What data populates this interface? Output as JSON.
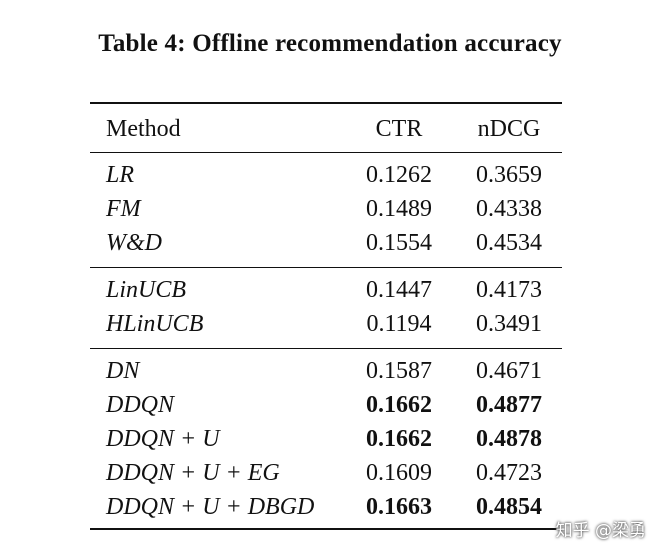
{
  "caption": "Table 4: Offline recommendation accuracy",
  "header": {
    "method": "Method",
    "ctr": "CTR",
    "ndcg": "nDCG"
  },
  "groups": [
    {
      "rows": [
        {
          "method": "LR",
          "ctr": "0.1262",
          "ndcg": "0.3659",
          "bold_ctr": false,
          "bold_ndcg": false
        },
        {
          "method": "FM",
          "ctr": "0.1489",
          "ndcg": "0.4338",
          "bold_ctr": false,
          "bold_ndcg": false
        },
        {
          "method": "W&D",
          "ctr": "0.1554",
          "ndcg": "0.4534",
          "bold_ctr": false,
          "bold_ndcg": false
        }
      ]
    },
    {
      "rows": [
        {
          "method": "LinUCB",
          "ctr": "0.1447",
          "ndcg": "0.4173",
          "bold_ctr": false,
          "bold_ndcg": false
        },
        {
          "method": "HLinUCB",
          "ctr": "0.1194",
          "ndcg": "0.3491",
          "bold_ctr": false,
          "bold_ndcg": false
        }
      ]
    },
    {
      "rows": [
        {
          "method": "DN",
          "ctr": "0.1587",
          "ndcg": "0.4671",
          "bold_ctr": false,
          "bold_ndcg": false
        },
        {
          "method": "DDQN",
          "ctr": "0.1662",
          "ndcg": "0.4877",
          "bold_ctr": true,
          "bold_ndcg": true
        },
        {
          "method": "DDQN + U",
          "ctr": "0.1662",
          "ndcg": "0.4878",
          "bold_ctr": true,
          "bold_ndcg": true
        },
        {
          "method": "DDQN + U + EG",
          "ctr": "0.1609",
          "ndcg": "0.4723",
          "bold_ctr": false,
          "bold_ndcg": false
        },
        {
          "method": "DDQN + U + DBGD",
          "ctr": "0.1663",
          "ndcg": "0.4854",
          "bold_ctr": true,
          "bold_ndcg": true
        }
      ]
    }
  ],
  "watermark": "知乎 @梁勇"
}
